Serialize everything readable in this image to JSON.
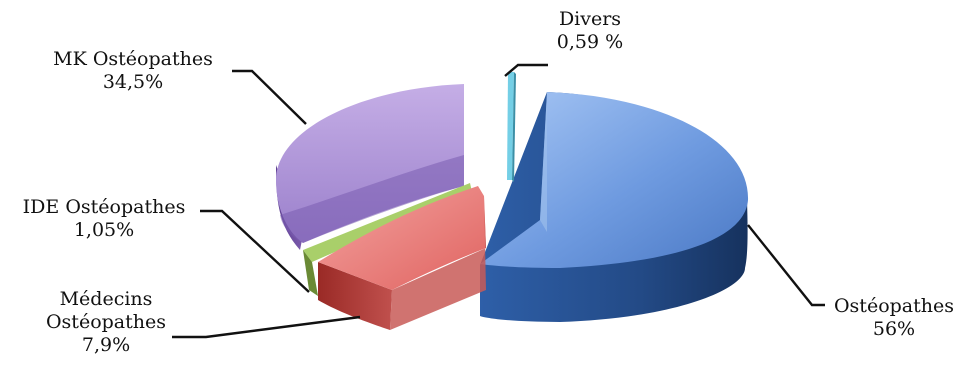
{
  "chart_data": {
    "type": "pie",
    "style": "3d-exploded",
    "slices": [
      {
        "label": "Ostéopathes",
        "value_label": "56%",
        "value": 56,
        "color": "#4f81bd"
      },
      {
        "label": "Médecins Ostéopathes",
        "label_lines": [
          "Médecins",
          "Ostéopathes"
        ],
        "value_label": "7,9%",
        "value": 7.9,
        "color": "#c0504d"
      },
      {
        "label": "IDE Ostéopathes",
        "value_label": "1,05%",
        "value": 1.05,
        "color": "#9bbb59"
      },
      {
        "label": "MK Ostéopathes",
        "value_label": "34,5%",
        "value": 34.5,
        "color": "#8064a2"
      },
      {
        "label": "Divers",
        "value_label": "0,59 %",
        "value": 0.59,
        "color": "#4bacc6"
      }
    ],
    "legend": "none",
    "grid": false
  }
}
